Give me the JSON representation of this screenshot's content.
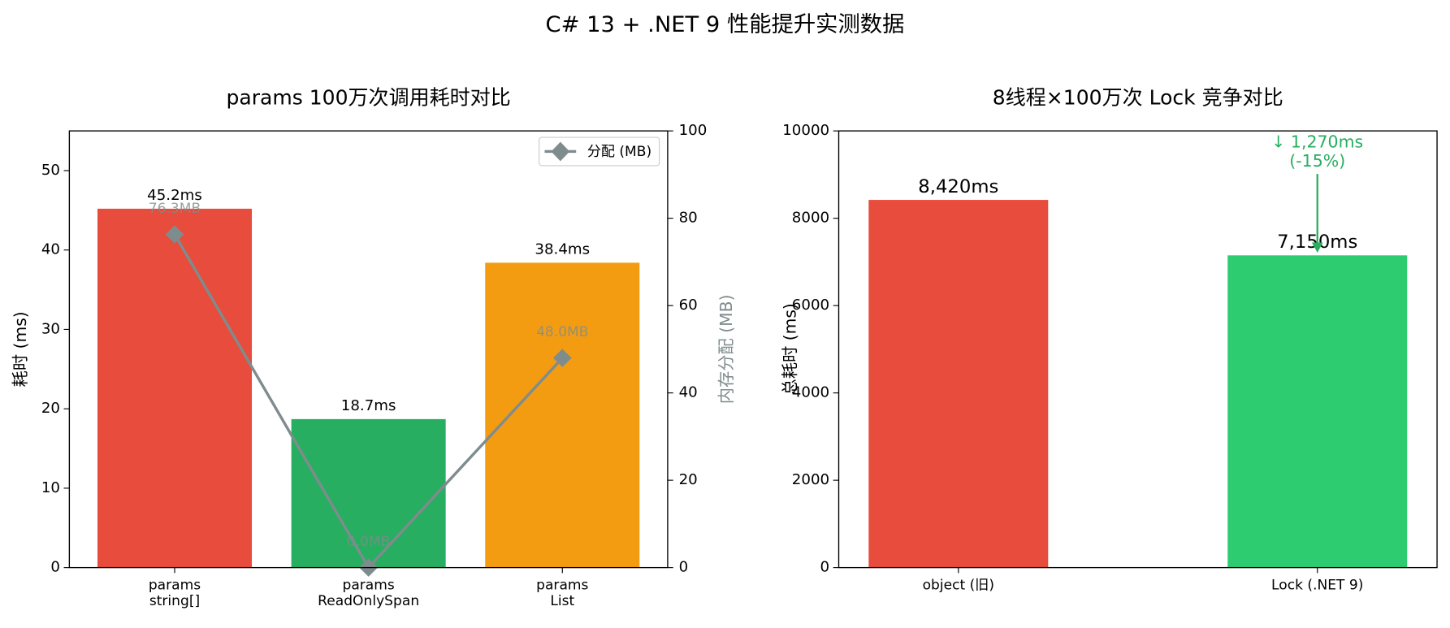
{
  "title": "C# 13 + .NET 9 性能提升实测数据",
  "chart_data": [
    {
      "type": "bar",
      "title": "params 100万次调用耗时对比",
      "categories": [
        "params\nstring[]",
        "params\nReadOnlySpan",
        "params\nList"
      ],
      "ylabel": "耗时 (ms)",
      "y2label": "内存分配 (MB)",
      "ylim": [
        0,
        55
      ],
      "yticks": [
        0,
        10,
        20,
        30,
        40,
        50
      ],
      "y2lim": [
        0,
        100
      ],
      "y2ticks": [
        0,
        20,
        40,
        60,
        80,
        100
      ],
      "legend": "upper right",
      "series": [
        {
          "name": null,
          "type": "bar",
          "colors": [
            "#e74c3c",
            "#27ae60",
            "#f39c12"
          ],
          "values": [
            45.2,
            18.7,
            38.4
          ],
          "value_labels": [
            "45.2ms",
            "18.7ms",
            "38.4ms"
          ]
        },
        {
          "name": "分配 (MB)",
          "type": "line",
          "axis": "y2",
          "color": "#7f8c8d",
          "values": [
            76.3,
            0.0,
            48.0
          ],
          "value_labels": [
            "76.3MB",
            "0.0MB",
            "48.0MB"
          ]
        }
      ]
    },
    {
      "type": "bar",
      "title": "8线程×100万次 Lock 竞争对比",
      "categories": [
        "object (旧)",
        "Lock (.NET 9)"
      ],
      "ylabel": "总耗时 (ms)",
      "ylim": [
        0,
        10000
      ],
      "yticks": [
        0,
        2000,
        4000,
        6000,
        8000,
        10000
      ],
      "series": [
        {
          "name": null,
          "type": "bar",
          "colors": [
            "#e74c3c",
            "#2ecc71"
          ],
          "values": [
            8420,
            7150
          ],
          "value_labels": [
            "8,420ms",
            "7,150ms"
          ]
        }
      ],
      "annotation": {
        "text": "↓ 1,270ms\n(-15%)",
        "color": "#27ae60"
      }
    }
  ]
}
